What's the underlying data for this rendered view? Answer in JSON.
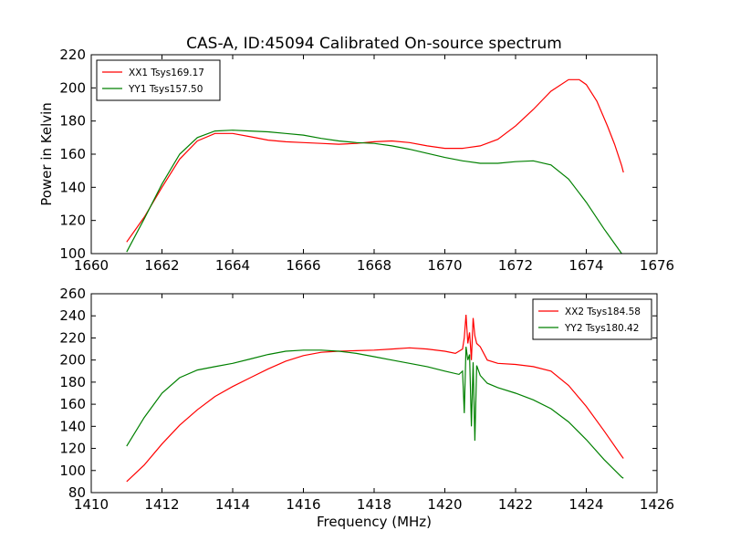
{
  "title": "CAS-A, ID:45094 Calibrated On-source spectrum",
  "colors": {
    "xx": "#ff0000",
    "yy": "#008000",
    "axes": "#000000"
  },
  "chart_data": [
    {
      "type": "line",
      "ylabel": "Power in Kelvin",
      "xlabel": "",
      "xlim": [
        1660,
        1676
      ],
      "ylim": [
        100,
        220
      ],
      "xticks": [
        1660,
        1662,
        1664,
        1666,
        1668,
        1670,
        1672,
        1674,
        1676
      ],
      "yticks": [
        100,
        120,
        140,
        160,
        180,
        200,
        220
      ],
      "legend_position": "top-left",
      "grid": false,
      "series": [
        {
          "name": "XX1 Tsys169.17",
          "color": "#ff0000",
          "x": [
            1661.0,
            1661.5,
            1662.0,
            1662.5,
            1663.0,
            1663.5,
            1664.0,
            1664.5,
            1665.0,
            1665.5,
            1666.0,
            1666.5,
            1667.0,
            1667.5,
            1668.0,
            1668.5,
            1669.0,
            1669.5,
            1670.0,
            1670.5,
            1671.0,
            1671.5,
            1672.0,
            1672.5,
            1673.0,
            1673.5,
            1673.8,
            1674.0,
            1674.3,
            1674.6,
            1674.8,
            1675.0,
            1675.05
          ],
          "y": [
            107,
            122,
            140,
            157,
            168,
            172.5,
            172.5,
            170.5,
            168.5,
            167.5,
            167,
            166.5,
            166,
            166.5,
            167.5,
            168,
            167,
            165,
            163.5,
            163.5,
            165,
            169,
            177,
            187,
            198,
            205,
            205,
            202,
            192,
            177,
            166,
            153,
            149
          ]
        },
        {
          "name": "YY1 Tsys157.50",
          "color": "#008000",
          "x": [
            1661.0,
            1661.5,
            1662.0,
            1662.5,
            1663.0,
            1663.5,
            1664.0,
            1664.5,
            1665.0,
            1665.5,
            1666.0,
            1666.5,
            1667.0,
            1667.5,
            1668.0,
            1668.5,
            1669.0,
            1669.5,
            1670.0,
            1670.5,
            1671.0,
            1671.5,
            1672.0,
            1672.5,
            1673.0,
            1673.5,
            1674.0,
            1674.5,
            1675.0
          ],
          "y": [
            101,
            121,
            142,
            160,
            170,
            174,
            174.5,
            174,
            173.5,
            172.5,
            171.5,
            169.5,
            168,
            167,
            166.5,
            165,
            163,
            160.5,
            158,
            156,
            154.5,
            154.5,
            155.5,
            156,
            153.5,
            145,
            131,
            115,
            100
          ]
        }
      ]
    },
    {
      "type": "line",
      "ylabel": "",
      "xlabel": "Frequency (MHz)",
      "xlim": [
        1410,
        1426
      ],
      "ylim": [
        80,
        260
      ],
      "xticks": [
        1410,
        1412,
        1414,
        1416,
        1418,
        1420,
        1422,
        1424,
        1426
      ],
      "yticks": [
        80,
        100,
        120,
        140,
        160,
        180,
        200,
        220,
        240,
        260
      ],
      "legend_position": "top-right",
      "grid": false,
      "series": [
        {
          "name": "XX2 Tsys184.58",
          "color": "#ff0000",
          "x": [
            1411.0,
            1411.5,
            1412.0,
            1412.5,
            1413.0,
            1413.5,
            1414.0,
            1414.5,
            1415.0,
            1415.5,
            1416.0,
            1416.5,
            1417.0,
            1417.5,
            1418.0,
            1418.5,
            1419.0,
            1419.5,
            1420.0,
            1420.3,
            1420.5,
            1420.55,
            1420.6,
            1420.65,
            1420.7,
            1420.75,
            1420.8,
            1420.85,
            1420.9,
            1421.0,
            1421.2,
            1421.5,
            1422.0,
            1422.5,
            1423.0,
            1423.5,
            1424.0,
            1424.5,
            1425.0,
            1425.05
          ],
          "y": [
            90,
            105,
            124,
            141,
            155,
            167,
            176,
            184,
            192,
            199,
            204,
            207,
            208,
            208.5,
            209,
            210,
            211,
            210,
            208,
            206,
            210,
            220,
            241,
            215,
            225,
            200,
            238,
            222,
            215,
            212,
            200,
            197,
            196,
            194,
            190,
            177,
            158,
            136,
            113,
            111
          ]
        },
        {
          "name": "YY2 Tsys180.42",
          "color": "#008000",
          "x": [
            1411.0,
            1411.5,
            1412.0,
            1412.5,
            1413.0,
            1413.5,
            1414.0,
            1414.5,
            1415.0,
            1415.5,
            1416.0,
            1416.5,
            1417.0,
            1417.5,
            1418.0,
            1418.5,
            1419.0,
            1419.5,
            1420.0,
            1420.4,
            1420.5,
            1420.55,
            1420.6,
            1420.65,
            1420.7,
            1420.75,
            1420.8,
            1420.85,
            1420.9,
            1421.0,
            1421.2,
            1421.5,
            1422.0,
            1422.5,
            1423.0,
            1423.5,
            1424.0,
            1424.5,
            1425.0,
            1425.05
          ],
          "y": [
            122,
            148,
            170,
            184,
            191,
            194,
            197,
            201,
            205,
            208,
            209,
            209,
            208,
            206,
            203,
            200,
            197,
            194,
            190,
            187,
            190,
            152,
            212,
            200,
            205,
            140,
            198,
            127,
            195,
            186,
            179,
            175,
            170,
            164,
            156,
            144,
            128,
            110,
            94,
            93
          ]
        }
      ]
    }
  ]
}
